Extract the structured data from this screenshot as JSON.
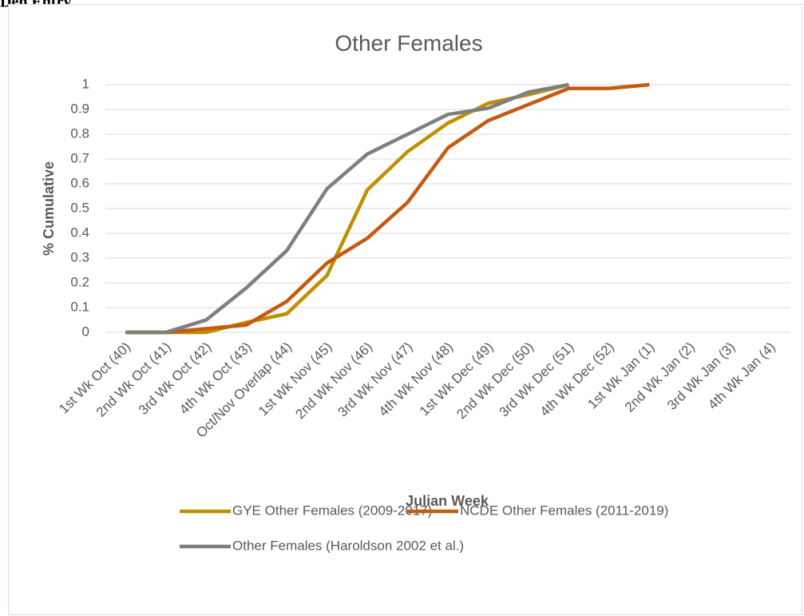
{
  "heading": "Den Entry",
  "chart_data": {
    "type": "line",
    "title": "Other Females",
    "x_label": "Julian Week",
    "y_label": "% Cumulative",
    "categories": [
      "1st Wk Oct (40)",
      "2nd Wk Oct (41)",
      "3rd Wk Oct (42)",
      "4th Wk Oct (43)",
      "Oct/Nov Overlap (44)",
      "1st Wk Nov (45)",
      "2nd Wk Nov (46)",
      "3rd Wk Nov (47)",
      "4th Wk Nov (48)",
      "1st Wk Dec (49)",
      "2nd Wk Dec (50)",
      "3rd Wk Dec (51)",
      "4th Wk Dec (52)",
      "1st Wk Jan (1)",
      "2nd Wk Jan (2)",
      "3rd Wk Jan (3)",
      "4th Wk Jan (4)"
    ],
    "series": [
      {
        "name": "GYE Other Females (2009-2017)",
        "color": "#bf9000",
        "values": [
          0,
          0,
          0,
          0.04,
          0.075,
          0.23,
          0.575,
          0.73,
          0.845,
          0.925,
          0.96,
          1,
          null,
          null,
          null,
          null,
          null
        ]
      },
      {
        "name": "NCDE Other Females (2011-2019)",
        "color": "#c55a11",
        "values": [
          0,
          0,
          0.015,
          0.03,
          0.125,
          0.28,
          0.38,
          0.525,
          0.745,
          0.855,
          0.92,
          0.985,
          0.985,
          1,
          null,
          null,
          null
        ]
      },
      {
        "name": "Other Females (Haroldson 2002 et al.)",
        "color": "#7f7f7f",
        "values": [
          0,
          0,
          0.05,
          0.18,
          0.33,
          0.58,
          0.72,
          0.8,
          0.88,
          0.905,
          0.97,
          1,
          null,
          null,
          null,
          null,
          null
        ]
      }
    ],
    "ylim": [
      0,
      1
    ],
    "yticks": [
      0,
      0.1,
      0.2,
      0.3,
      0.4,
      0.5,
      0.6,
      0.7,
      0.8,
      0.9,
      1
    ],
    "grid": true,
    "legend": "bottom"
  }
}
